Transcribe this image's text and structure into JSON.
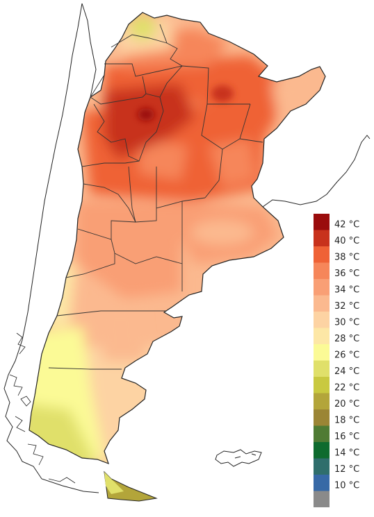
{
  "legend": {
    "items": [
      {
        "label": "42 °C",
        "color": "#9a0c0c"
      },
      {
        "label": "40 °C",
        "color": "#c8321c"
      },
      {
        "label": "38 °C",
        "color": "#ef6236"
      },
      {
        "label": "36 °C",
        "color": "#f6865a"
      },
      {
        "label": "34 °C",
        "color": "#f99f75"
      },
      {
        "label": "32 °C",
        "color": "#fbb98f"
      },
      {
        "label": "30 °C",
        "color": "#fdd3a3"
      },
      {
        "label": "28 °C",
        "color": "#fde7a6"
      },
      {
        "label": "26 °C",
        "color": "#fbfa96"
      },
      {
        "label": "24 °C",
        "color": "#e0e06a"
      },
      {
        "label": "22 °C",
        "color": "#c9c940"
      },
      {
        "label": "20 °C",
        "color": "#b3a53a"
      },
      {
        "label": "18 °C",
        "color": "#9b8535"
      },
      {
        "label": "16 °C",
        "color": "#4f7b34"
      },
      {
        "label": "14 °C",
        "color": "#0e6b2e"
      },
      {
        "label": "12 °C",
        "color": "#2f6e6c"
      },
      {
        "label": "10 °C",
        "color": "#3769a6"
      },
      {
        "label": "",
        "color": "#8a8a8a"
      }
    ]
  }
}
